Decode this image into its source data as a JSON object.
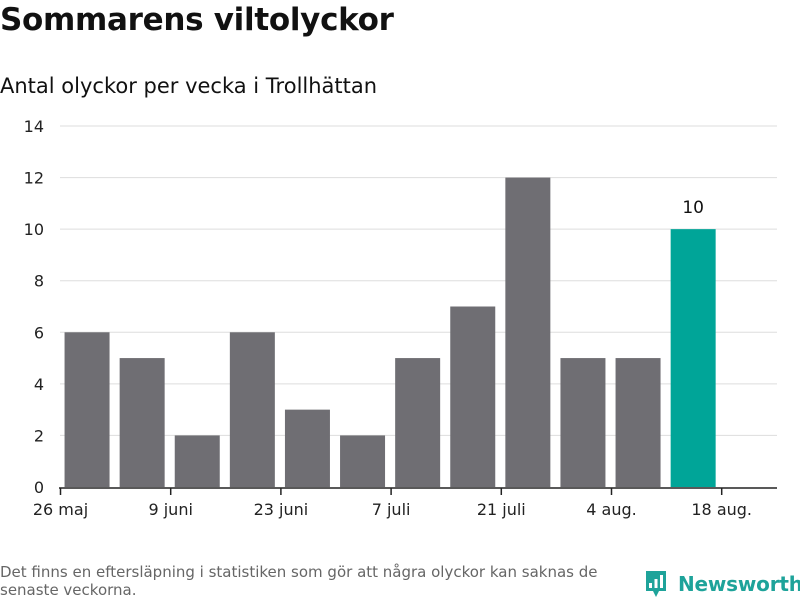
{
  "header": {
    "title": "Sommarens viltolyckor",
    "subtitle": "Antal olyckor per vecka i Trollhättan"
  },
  "footer": {
    "note": "Det finns en eftersläpning i statistiken som gör att några olyckor kan saknas de senaste veckorna.",
    "brand": "Newsworthy"
  },
  "colors": {
    "bar": "#6f6e73",
    "highlight": "#00a598",
    "grid": "#dddddd",
    "axis": "#222222",
    "brand": "#1ea39a"
  },
  "icons": {
    "logo": "newsworthy-bar-chart-logo"
  },
  "chart_data": {
    "type": "bar",
    "title": "Sommarens viltolyckor",
    "subtitle": "Antal olyckor per vecka i Trollhättan",
    "xlabel": "",
    "ylabel": "",
    "x": [
      "2019-05-26",
      "2019-06-02",
      "2019-06-09",
      "2019-06-16",
      "2019-06-23",
      "2019-06-30",
      "2019-07-07",
      "2019-07-14",
      "2019-07-21",
      "2019-07-28",
      "2019-08-04",
      "2019-08-11"
    ],
    "values": [
      6,
      5,
      2,
      6,
      3,
      2,
      5,
      7,
      12,
      5,
      5,
      10
    ],
    "highlight_index": 11,
    "data_labels": [
      {
        "index": 11,
        "text": "10"
      }
    ],
    "xticks": [
      "26 maj",
      "9 juni",
      "23 juni",
      "7 juli",
      "21 juli",
      "4 aug.",
      "18 aug."
    ],
    "yticks": [
      "0",
      "2",
      "4",
      "6",
      "8",
      "10",
      "12",
      "14"
    ],
    "ylim": [
      0,
      14
    ],
    "grid": true,
    "legend": "none"
  }
}
